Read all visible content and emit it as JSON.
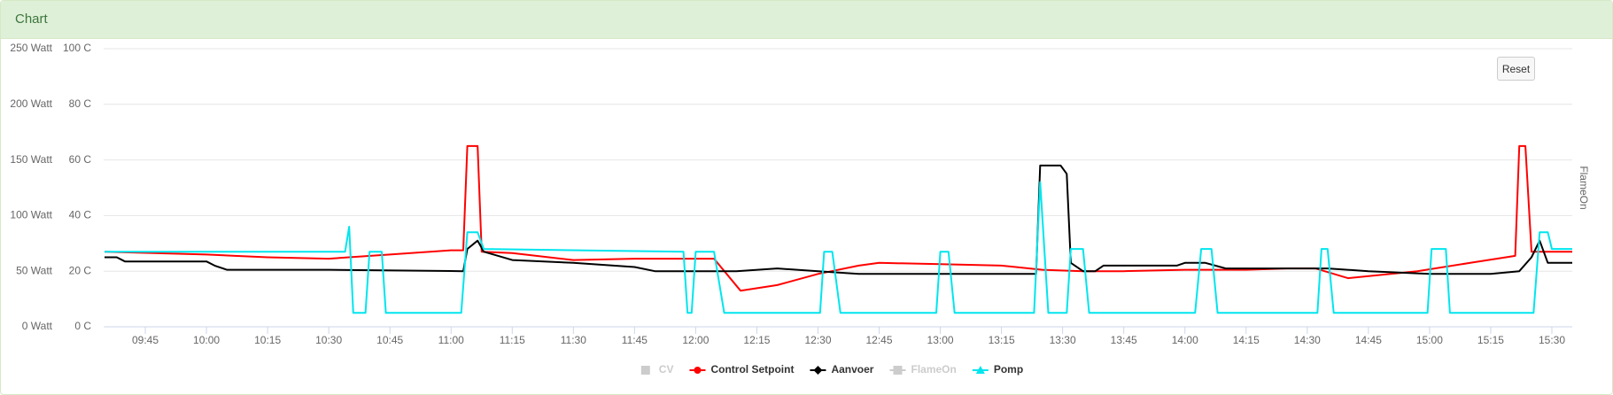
{
  "panel": {
    "title": "Chart",
    "reset_button": "Reset"
  },
  "chart_data": {
    "type": "line",
    "y2label": "FlameOn",
    "xlim": [
      575,
      935
    ],
    "xticks": [
      {
        "value": 585,
        "label": "09:45"
      },
      {
        "value": 600,
        "label": "10:00"
      },
      {
        "value": 615,
        "label": "10:15"
      },
      {
        "value": 630,
        "label": "10:30"
      },
      {
        "value": 645,
        "label": "10:45"
      },
      {
        "value": 660,
        "label": "11:00"
      },
      {
        "value": 675,
        "label": "11:15"
      },
      {
        "value": 690,
        "label": "11:30"
      },
      {
        "value": 705,
        "label": "11:45"
      },
      {
        "value": 720,
        "label": "12:00"
      },
      {
        "value": 735,
        "label": "12:15"
      },
      {
        "value": 750,
        "label": "12:30"
      },
      {
        "value": 765,
        "label": "12:45"
      },
      {
        "value": 780,
        "label": "13:00"
      },
      {
        "value": 795,
        "label": "13:15"
      },
      {
        "value": 810,
        "label": "13:30"
      },
      {
        "value": 825,
        "label": "13:45"
      },
      {
        "value": 840,
        "label": "14:00"
      },
      {
        "value": 855,
        "label": "14:15"
      },
      {
        "value": 870,
        "label": "14:30"
      },
      {
        "value": 885,
        "label": "14:45"
      },
      {
        "value": 900,
        "label": "15:00"
      },
      {
        "value": 915,
        "label": "15:15"
      },
      {
        "value": 930,
        "label": "15:30"
      }
    ],
    "ylim": [
      0,
      250
    ],
    "yticks": [
      {
        "value": 0,
        "label": "0 Watt"
      },
      {
        "value": 50,
        "label": "50 Watt"
      },
      {
        "value": 100,
        "label": "100 Watt"
      },
      {
        "value": 150,
        "label": "150 Watt"
      },
      {
        "value": 200,
        "label": "200 Watt"
      },
      {
        "value": 250,
        "label": "250 Watt"
      }
    ],
    "y2lim": [
      0,
      100
    ],
    "y2ticks": [
      {
        "value": 0,
        "label": "0 C"
      },
      {
        "value": 20,
        "label": "20 C"
      },
      {
        "value": 40,
        "label": "40 C"
      },
      {
        "value": 60,
        "label": "60 C"
      },
      {
        "value": 80,
        "label": "80 C"
      },
      {
        "value": 100,
        "label": "100 C"
      }
    ],
    "grid": true,
    "series": [
      {
        "name": "CV",
        "color": "#cccccc",
        "marker": "square",
        "visible": false
      },
      {
        "name": "Control Setpoint",
        "color": "#ff0000",
        "marker": "circle",
        "axis": "y2",
        "x": [
          575,
          600,
          615,
          630,
          645,
          660,
          663,
          664,
          666.5,
          667.5,
          675,
          690,
          705,
          724.5,
          731,
          740,
          750,
          760,
          765,
          780,
          795,
          805,
          815,
          825,
          840,
          850,
          855,
          865,
          872,
          880,
          897,
          910,
          921,
          922,
          923.5,
          925,
          935
        ],
        "values": [
          27,
          26,
          25,
          24.5,
          26,
          27.5,
          27.5,
          65,
          65,
          27,
          26.5,
          24,
          24.5,
          24.5,
          13,
          15,
          19,
          22,
          23,
          22.5,
          22,
          20.5,
          20,
          20,
          20.5,
          20.5,
          20.5,
          21,
          21,
          17.5,
          20,
          23,
          25.5,
          65,
          65,
          27,
          27
        ]
      },
      {
        "name": "Aanvoer",
        "color": "#000000",
        "marker": "diamond",
        "axis": "y2",
        "x": [
          575,
          578,
          580,
          600,
          602,
          605,
          630,
          663,
          664,
          666.5,
          668,
          675,
          690,
          705,
          710,
          720,
          730,
          740,
          750,
          760,
          765,
          800,
          803.5,
          804.5,
          809.5,
          811,
          812,
          815,
          818,
          820,
          838,
          840,
          845,
          850,
          875,
          885,
          900,
          915,
          922,
          925,
          927,
          929,
          935
        ],
        "values": [
          25,
          25,
          23.5,
          23.5,
          22,
          20.5,
          20.5,
          20,
          28,
          31,
          27,
          24,
          23,
          21.5,
          20,
          20,
          20,
          21,
          20,
          19,
          19,
          19,
          19,
          58,
          58,
          55,
          23,
          20,
          20,
          22,
          22,
          23,
          23,
          21,
          21,
          20,
          19,
          19,
          20,
          25,
          31,
          23,
          23
        ]
      },
      {
        "name": "FlameOn",
        "color": "#cccccc",
        "marker": "square",
        "visible": false
      },
      {
        "name": "Pomp",
        "color": "#00e5ee",
        "marker": "triangle",
        "axis": "y2",
        "x": [
          575,
          634,
          635,
          636,
          639,
          640,
          643,
          644,
          662.5,
          664,
          666.5,
          668,
          717,
          718,
          719,
          720,
          724.5,
          727,
          750.5,
          751.5,
          753.5,
          755.5,
          779,
          780,
          782,
          783.5,
          803,
          804.5,
          806.5,
          811,
          812,
          815,
          816.5,
          842.5,
          844,
          846.5,
          848,
          872.5,
          873.5,
          875,
          876.5,
          899.5,
          900.5,
          904,
          905,
          925.5,
          927,
          929,
          930,
          935
        ],
        "values": [
          27,
          27,
          36,
          5,
          5,
          27,
          27,
          5,
          5,
          34,
          34,
          28,
          27,
          5,
          5,
          27,
          27,
          5,
          5,
          27,
          27,
          5,
          5,
          27,
          27,
          5,
          5,
          52,
          5,
          5,
          28,
          28,
          5,
          5,
          28,
          28,
          5,
          5,
          28,
          28,
          5,
          5,
          28,
          28,
          5,
          5,
          34,
          34,
          28,
          28
        ]
      }
    ]
  }
}
